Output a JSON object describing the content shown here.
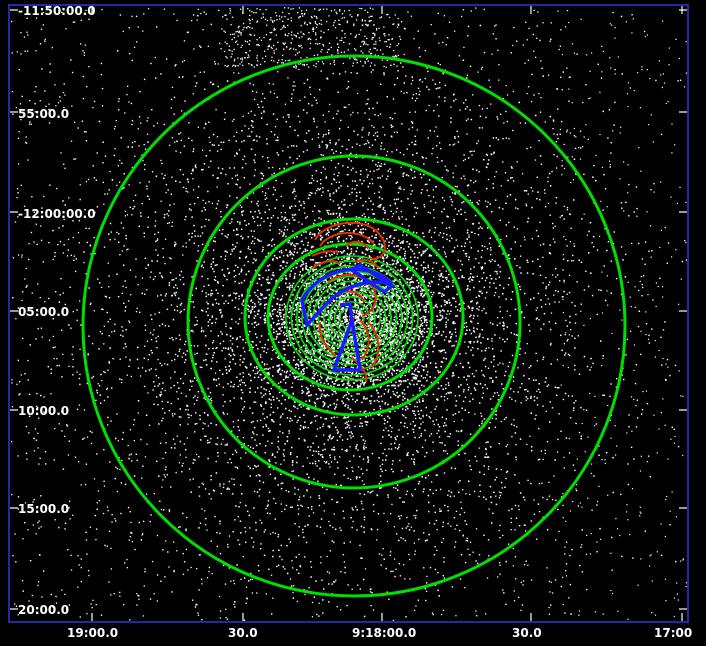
{
  "image": {
    "background_color": "#000000",
    "frame_color": "#1f2aa8",
    "point_color": "#ffffff",
    "contour_colors": {
      "regions": "#00e000",
      "xray": "#e03000",
      "sector": "#1a1aff"
    }
  },
  "axes": {
    "dec_labels": [
      "-11:50:00.0",
      "55:00.0",
      "-12:00:00.0",
      "05:00.0",
      "10:00.0",
      "15:00.0",
      "20:00.0"
    ],
    "ra_labels": [
      "19:00.0",
      "30.0",
      "9:18:00.0",
      "30.0",
      "17:00"
    ]
  }
}
